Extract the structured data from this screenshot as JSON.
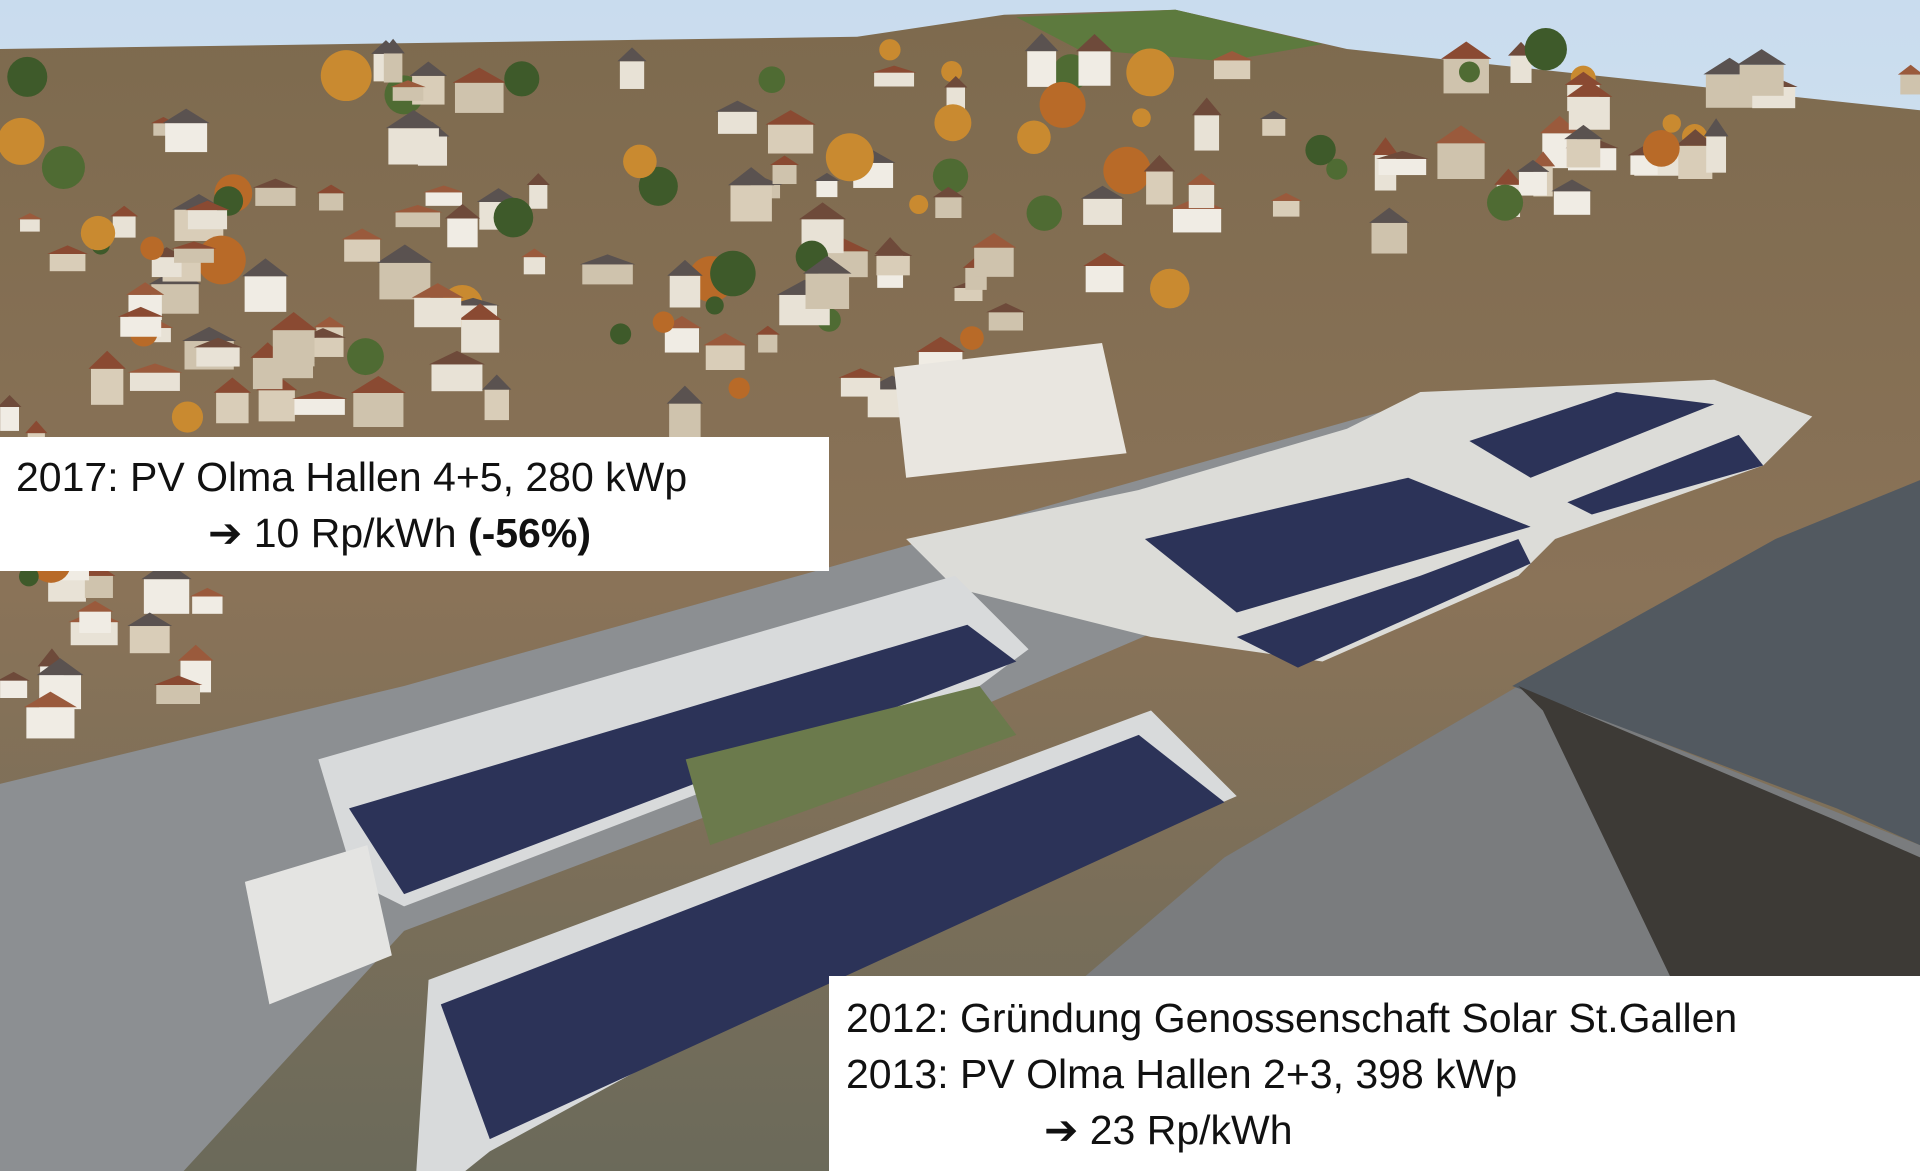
{
  "overlays": [
    {
      "lines": [
        {
          "text": "2017: PV Olma Hallen 4+5, 280 kWp"
        },
        {
          "text": "➔ 10 Rp/kWh",
          "emphasis": "(-56%)"
        }
      ]
    },
    {
      "lines": [
        {
          "text": "2012: Gründung Genossenschaft Solar St.Gallen"
        },
        {
          "text": "2013: PV Olma Hallen 2+3, 398 kWp"
        },
        {
          "text": "➔ 23 Rp/kWh"
        }
      ]
    }
  ]
}
